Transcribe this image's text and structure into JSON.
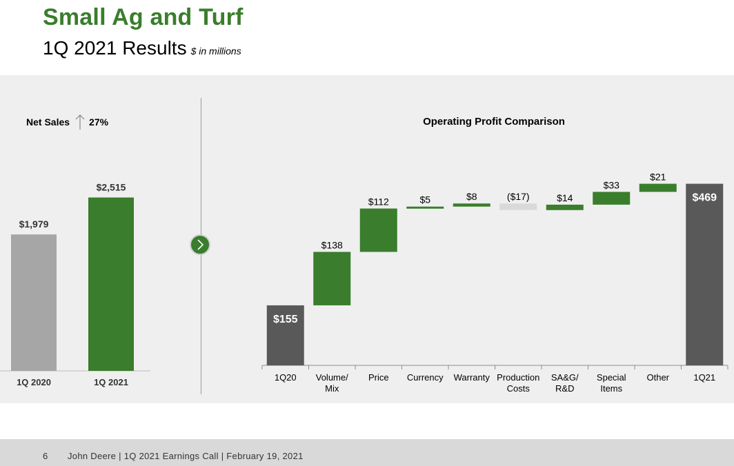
{
  "header": {
    "title": "Small Ag and Turf",
    "subtitle": "1Q 2021 Results",
    "units": "$ in millions"
  },
  "net_sales": {
    "label": "Net Sales",
    "change": "27%"
  },
  "footer": {
    "page": "6",
    "text": "John Deere | 1Q 2021 Earnings Call | February 19, 2021"
  },
  "colors": {
    "green": "#3a7d2c",
    "gray_bar": "#a6a6a6",
    "dark_bar": "#595959",
    "light_neg": "#d9d9d9",
    "panel_bg": "#efefef"
  },
  "chart_data": [
    {
      "type": "bar",
      "title": "Net Sales",
      "categories": [
        "1Q 2020",
        "1Q 2021"
      ],
      "values": [
        1979,
        2515
      ],
      "labels": [
        "$1,979",
        "$2,515"
      ],
      "ylim": [
        0,
        3400
      ]
    },
    {
      "type": "waterfall",
      "title": "Operating Profit Comparison",
      "categories": [
        "1Q20",
        "Volume/\nMix",
        "Price",
        "Currency",
        "Warranty",
        "Production\nCosts",
        "SA&G/\nR&D",
        "Special\nItems",
        "Other",
        "1Q21"
      ],
      "values": [
        155,
        138,
        112,
        5,
        8,
        -17,
        14,
        33,
        21,
        469
      ],
      "kinds": [
        "total",
        "delta",
        "delta",
        "delta",
        "delta",
        "delta",
        "delta",
        "delta",
        "delta",
        "total"
      ],
      "labels": [
        "$155",
        "$138",
        "$112",
        "$5",
        "$8",
        "($17)",
        "$14",
        "$33",
        "$21",
        "$469"
      ],
      "ylim": [
        0,
        470
      ]
    }
  ]
}
